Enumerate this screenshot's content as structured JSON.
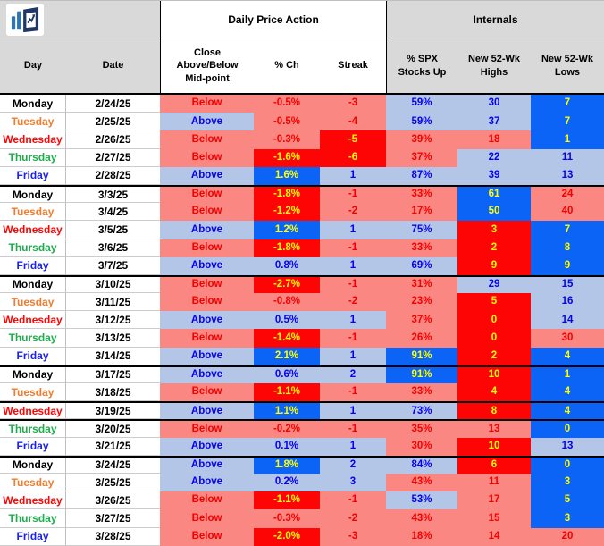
{
  "header": {
    "section1_title": "Daily Price Action",
    "section2_title": "Internals"
  },
  "palette": {
    "header_gray": "#d9d9d9",
    "bg": {
      "pink": "#FA8782",
      "lblue": "#B4C6E7",
      "red": "#FE0505",
      "blue": "#0B64F5",
      "white": "#ffffff"
    },
    "fg": {
      "red": "#F50000",
      "blue": "#0502F0",
      "yellow": "#FFFF00",
      "black": "#000000"
    },
    "day_colors": {
      "Monday": "#000000",
      "Tuesday": "#ED7D31",
      "Wednesday": "#FB0505",
      "Thursday": "#1EAE4C",
      "Friday": "#1B22EF"
    },
    "logo_bar_blue": "#2E75B6",
    "logo_dark_navy": "#1F3864"
  },
  "chart_data": {
    "type": "table",
    "section_headers": [
      {
        "label": "Daily Price Action",
        "spans_columns": [
          "Close Above/Below Mid-point",
          "% Ch",
          "Streak"
        ]
      },
      {
        "label": "Internals",
        "spans_columns": [
          "% SPX Stocks Up",
          "New 52-Wk Highs",
          "New 52-Wk Lows"
        ]
      }
    ],
    "columns": [
      "Day",
      "Date",
      "Close\nAbove/Below\nMid-point",
      "% Ch",
      "Streak",
      "% SPX\nStocks Up",
      "New 52-Wk\nHighs",
      "New 52-Wk\nLows"
    ],
    "rows": [
      {
        "day": "Monday",
        "date": "2/24/25",
        "thick_top": false,
        "cells": [
          [
            "Below",
            "pink",
            "red"
          ],
          [
            "-0.5%",
            "pink",
            "red"
          ],
          [
            "-3",
            "pink",
            "red"
          ],
          [
            "59%",
            "lblue",
            "blue"
          ],
          [
            "30",
            "lblue",
            "blue"
          ],
          [
            "7",
            "blue",
            "yellow"
          ]
        ]
      },
      {
        "day": "Tuesday",
        "date": "2/25/25",
        "thick_top": false,
        "cells": [
          [
            "Above",
            "lblue",
            "blue"
          ],
          [
            "-0.5%",
            "pink",
            "red"
          ],
          [
            "-4",
            "pink",
            "red"
          ],
          [
            "59%",
            "lblue",
            "blue"
          ],
          [
            "37",
            "lblue",
            "blue"
          ],
          [
            "7",
            "blue",
            "yellow"
          ]
        ]
      },
      {
        "day": "Wednesday",
        "date": "2/26/25",
        "thick_top": false,
        "cells": [
          [
            "Below",
            "pink",
            "red"
          ],
          [
            "-0.3%",
            "pink",
            "red"
          ],
          [
            "-5",
            "red",
            "yellow"
          ],
          [
            "39%",
            "pink",
            "red"
          ],
          [
            "18",
            "pink",
            "red"
          ],
          [
            "1",
            "blue",
            "yellow"
          ]
        ]
      },
      {
        "day": "Thursday",
        "date": "2/27/25",
        "thick_top": false,
        "cells": [
          [
            "Below",
            "pink",
            "red"
          ],
          [
            "-1.6%",
            "red",
            "yellow"
          ],
          [
            "-6",
            "red",
            "yellow"
          ],
          [
            "37%",
            "pink",
            "red"
          ],
          [
            "22",
            "lblue",
            "blue"
          ],
          [
            "11",
            "lblue",
            "blue"
          ]
        ]
      },
      {
        "day": "Friday",
        "date": "2/28/25",
        "thick_top": false,
        "cells": [
          [
            "Above",
            "lblue",
            "blue"
          ],
          [
            "1.6%",
            "blue",
            "yellow"
          ],
          [
            "1",
            "lblue",
            "blue"
          ],
          [
            "87%",
            "lblue",
            "blue"
          ],
          [
            "39",
            "lblue",
            "blue"
          ],
          [
            "13",
            "lblue",
            "blue"
          ]
        ]
      },
      {
        "day": "Monday",
        "date": "3/3/25",
        "thick_top": true,
        "cells": [
          [
            "Below",
            "pink",
            "red"
          ],
          [
            "-1.8%",
            "red",
            "yellow"
          ],
          [
            "-1",
            "pink",
            "red"
          ],
          [
            "33%",
            "pink",
            "red"
          ],
          [
            "61",
            "blue",
            "yellow"
          ],
          [
            "24",
            "pink",
            "red"
          ]
        ]
      },
      {
        "day": "Tuesday",
        "date": "3/4/25",
        "thick_top": false,
        "cells": [
          [
            "Below",
            "pink",
            "red"
          ],
          [
            "-1.2%",
            "red",
            "yellow"
          ],
          [
            "-2",
            "pink",
            "red"
          ],
          [
            "17%",
            "pink",
            "red"
          ],
          [
            "50",
            "blue",
            "yellow"
          ],
          [
            "40",
            "pink",
            "red"
          ]
        ]
      },
      {
        "day": "Wednesday",
        "date": "3/5/25",
        "thick_top": false,
        "cells": [
          [
            "Above",
            "lblue",
            "blue"
          ],
          [
            "1.2%",
            "blue",
            "yellow"
          ],
          [
            "1",
            "lblue",
            "blue"
          ],
          [
            "75%",
            "lblue",
            "blue"
          ],
          [
            "3",
            "red",
            "yellow"
          ],
          [
            "7",
            "blue",
            "yellow"
          ]
        ]
      },
      {
        "day": "Thursday",
        "date": "3/6/25",
        "thick_top": false,
        "cells": [
          [
            "Below",
            "pink",
            "red"
          ],
          [
            "-1.8%",
            "red",
            "yellow"
          ],
          [
            "-1",
            "pink",
            "red"
          ],
          [
            "33%",
            "pink",
            "red"
          ],
          [
            "2",
            "red",
            "yellow"
          ],
          [
            "8",
            "blue",
            "yellow"
          ]
        ]
      },
      {
        "day": "Friday",
        "date": "3/7/25",
        "thick_top": false,
        "cells": [
          [
            "Above",
            "lblue",
            "blue"
          ],
          [
            "0.8%",
            "lblue",
            "blue"
          ],
          [
            "1",
            "lblue",
            "blue"
          ],
          [
            "69%",
            "lblue",
            "blue"
          ],
          [
            "9",
            "red",
            "yellow"
          ],
          [
            "9",
            "blue",
            "yellow"
          ]
        ]
      },
      {
        "day": "Monday",
        "date": "3/10/25",
        "thick_top": true,
        "cells": [
          [
            "Below",
            "pink",
            "red"
          ],
          [
            "-2.7%",
            "red",
            "yellow"
          ],
          [
            "-1",
            "pink",
            "red"
          ],
          [
            "31%",
            "pink",
            "red"
          ],
          [
            "29",
            "lblue",
            "blue"
          ],
          [
            "15",
            "lblue",
            "blue"
          ]
        ]
      },
      {
        "day": "Tuesday",
        "date": "3/11/25",
        "thick_top": false,
        "cells": [
          [
            "Below",
            "pink",
            "red"
          ],
          [
            "-0.8%",
            "pink",
            "red"
          ],
          [
            "-2",
            "pink",
            "red"
          ],
          [
            "23%",
            "pink",
            "red"
          ],
          [
            "5",
            "red",
            "yellow"
          ],
          [
            "16",
            "lblue",
            "blue"
          ]
        ]
      },
      {
        "day": "Wednesday",
        "date": "3/12/25",
        "thick_top": false,
        "cells": [
          [
            "Above",
            "lblue",
            "blue"
          ],
          [
            "0.5%",
            "lblue",
            "blue"
          ],
          [
            "1",
            "lblue",
            "blue"
          ],
          [
            "37%",
            "pink",
            "red"
          ],
          [
            "0",
            "red",
            "yellow"
          ],
          [
            "14",
            "lblue",
            "blue"
          ]
        ]
      },
      {
        "day": "Thursday",
        "date": "3/13/25",
        "thick_top": false,
        "cells": [
          [
            "Below",
            "pink",
            "red"
          ],
          [
            "-1.4%",
            "red",
            "yellow"
          ],
          [
            "-1",
            "pink",
            "red"
          ],
          [
            "26%",
            "pink",
            "red"
          ],
          [
            "0",
            "red",
            "yellow"
          ],
          [
            "30",
            "pink",
            "red"
          ]
        ]
      },
      {
        "day": "Friday",
        "date": "3/14/25",
        "thick_top": false,
        "cells": [
          [
            "Above",
            "lblue",
            "blue"
          ],
          [
            "2.1%",
            "blue",
            "yellow"
          ],
          [
            "1",
            "lblue",
            "blue"
          ],
          [
            "91%",
            "blue",
            "yellow"
          ],
          [
            "2",
            "red",
            "yellow"
          ],
          [
            "4",
            "blue",
            "yellow"
          ]
        ]
      },
      {
        "day": "Monday",
        "date": "3/17/25",
        "thick_top": true,
        "cells": [
          [
            "Above",
            "lblue",
            "blue"
          ],
          [
            "0.6%",
            "lblue",
            "blue"
          ],
          [
            "2",
            "lblue",
            "blue"
          ],
          [
            "91%",
            "blue",
            "yellow"
          ],
          [
            "10",
            "red",
            "yellow"
          ],
          [
            "1",
            "blue",
            "yellow"
          ]
        ]
      },
      {
        "day": "Tuesday",
        "date": "3/18/25",
        "thick_top": false,
        "cells": [
          [
            "Below",
            "pink",
            "red"
          ],
          [
            "-1.1%",
            "red",
            "yellow"
          ],
          [
            "-1",
            "pink",
            "red"
          ],
          [
            "33%",
            "pink",
            "red"
          ],
          [
            "4",
            "red",
            "yellow"
          ],
          [
            "4",
            "blue",
            "yellow"
          ]
        ]
      },
      {
        "day": "Wednesday",
        "date": "3/19/25",
        "thick_top": true,
        "cells": [
          [
            "Above",
            "lblue",
            "blue"
          ],
          [
            "1.1%",
            "blue",
            "yellow"
          ],
          [
            "1",
            "lblue",
            "blue"
          ],
          [
            "73%",
            "lblue",
            "blue"
          ],
          [
            "8",
            "red",
            "yellow"
          ],
          [
            "4",
            "blue",
            "yellow"
          ]
        ]
      },
      {
        "day": "Thursday",
        "date": "3/20/25",
        "thick_top": true,
        "cells": [
          [
            "Below",
            "pink",
            "red"
          ],
          [
            "-0.2%",
            "pink",
            "red"
          ],
          [
            "-1",
            "pink",
            "red"
          ],
          [
            "35%",
            "pink",
            "red"
          ],
          [
            "13",
            "pink",
            "red"
          ],
          [
            "0",
            "blue",
            "yellow"
          ]
        ]
      },
      {
        "day": "Friday",
        "date": "3/21/25",
        "thick_top": false,
        "cells": [
          [
            "Above",
            "lblue",
            "blue"
          ],
          [
            "0.1%",
            "lblue",
            "blue"
          ],
          [
            "1",
            "lblue",
            "blue"
          ],
          [
            "30%",
            "pink",
            "red"
          ],
          [
            "10",
            "red",
            "yellow"
          ],
          [
            "13",
            "lblue",
            "blue"
          ]
        ]
      },
      {
        "day": "Monday",
        "date": "3/24/25",
        "thick_top": true,
        "cells": [
          [
            "Above",
            "lblue",
            "blue"
          ],
          [
            "1.8%",
            "blue",
            "yellow"
          ],
          [
            "2",
            "lblue",
            "blue"
          ],
          [
            "84%",
            "lblue",
            "blue"
          ],
          [
            "6",
            "red",
            "yellow"
          ],
          [
            "0",
            "blue",
            "yellow"
          ]
        ]
      },
      {
        "day": "Tuesday",
        "date": "3/25/25",
        "thick_top": false,
        "cells": [
          [
            "Above",
            "lblue",
            "blue"
          ],
          [
            "0.2%",
            "lblue",
            "blue"
          ],
          [
            "3",
            "lblue",
            "blue"
          ],
          [
            "43%",
            "pink",
            "red"
          ],
          [
            "11",
            "pink",
            "red"
          ],
          [
            "3",
            "blue",
            "yellow"
          ]
        ]
      },
      {
        "day": "Wednesday",
        "date": "3/26/25",
        "thick_top": false,
        "cells": [
          [
            "Below",
            "pink",
            "red"
          ],
          [
            "-1.1%",
            "red",
            "yellow"
          ],
          [
            "-1",
            "pink",
            "red"
          ],
          [
            "53%",
            "lblue",
            "blue"
          ],
          [
            "17",
            "pink",
            "red"
          ],
          [
            "5",
            "blue",
            "yellow"
          ]
        ]
      },
      {
        "day": "Thursday",
        "date": "3/27/25",
        "thick_top": false,
        "cells": [
          [
            "Below",
            "pink",
            "red"
          ],
          [
            "-0.3%",
            "pink",
            "red"
          ],
          [
            "-2",
            "pink",
            "red"
          ],
          [
            "43%",
            "pink",
            "red"
          ],
          [
            "15",
            "pink",
            "red"
          ],
          [
            "3",
            "blue",
            "yellow"
          ]
        ]
      },
      {
        "day": "Friday",
        "date": "3/28/25",
        "thick_top": false,
        "cells": [
          [
            "Below",
            "pink",
            "red"
          ],
          [
            "-2.0%",
            "red",
            "yellow"
          ],
          [
            "-3",
            "pink",
            "red"
          ],
          [
            "18%",
            "pink",
            "red"
          ],
          [
            "14",
            "pink",
            "red"
          ],
          [
            "20",
            "pink",
            "red"
          ]
        ]
      }
    ]
  }
}
